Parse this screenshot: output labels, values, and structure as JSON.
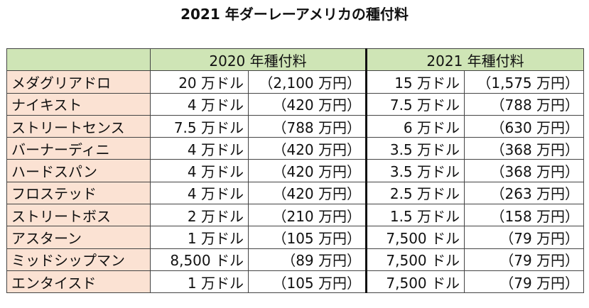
{
  "title": "2021 年ダーレーアメリカの種付料",
  "columns": [
    "2020 年種付料",
    "2021 年種付料"
  ],
  "rows": [
    {
      "name": "メダグリアドロ",
      "y2020_usd": "20 万ドル",
      "y2020_jpy": "（2,100 万円）",
      "y2021_usd": "15 万ドル",
      "y2021_jpy": "（1,575 万円）"
    },
    {
      "name": "ナイキスト",
      "y2020_usd": "4 万ドル",
      "y2020_jpy": "（420 万円）",
      "y2021_usd": "7.5 万ドル",
      "y2021_jpy": "（788 万円）"
    },
    {
      "name": "ストリートセンス",
      "y2020_usd": "7.5 万ドル",
      "y2020_jpy": "（788 万円）",
      "y2021_usd": "6 万ドル",
      "y2021_jpy": "（630 万円）"
    },
    {
      "name": "バーナーディニ",
      "y2020_usd": "4 万ドル",
      "y2020_jpy": "（420 万円）",
      "y2021_usd": "3.5 万ドル",
      "y2021_jpy": "（368 万円）"
    },
    {
      "name": "ハードスパン",
      "y2020_usd": "4 万ドル",
      "y2020_jpy": "（420 万円）",
      "y2021_usd": "3.5 万ドル",
      "y2021_jpy": "（368 万円）"
    },
    {
      "name": "フロステッド",
      "y2020_usd": "4 万ドル",
      "y2020_jpy": "（420 万円）",
      "y2021_usd": "2.5 万ドル",
      "y2021_jpy": "（263 万円）"
    },
    {
      "name": "ストリートボス",
      "y2020_usd": "2 万ドル",
      "y2020_jpy": "（210 万円）",
      "y2021_usd": "1.5 万ドル",
      "y2021_jpy": "（158 万円）"
    },
    {
      "name": "アスターン",
      "y2020_usd": "1 万ドル",
      "y2020_jpy": "（105 万円）",
      "y2021_usd": "7,500 ドル",
      "y2021_jpy": "（79 万円）"
    },
    {
      "name": "ミッドシップマン",
      "y2020_usd": "8,500 ドル",
      "y2020_jpy": "（89 万円）",
      "y2021_usd": "7,500 ドル",
      "y2021_jpy": "（79 万円）"
    },
    {
      "name": "エンタイスド",
      "y2020_usd": "1 万ドル",
      "y2020_jpy": "（105 万円）",
      "y2021_usd": "7,500 ドル",
      "y2021_jpy": "（79 万円）"
    }
  ],
  "colors": {
    "header_bg": "#cfe5b6",
    "name_bg": "#fbe2d3"
  }
}
